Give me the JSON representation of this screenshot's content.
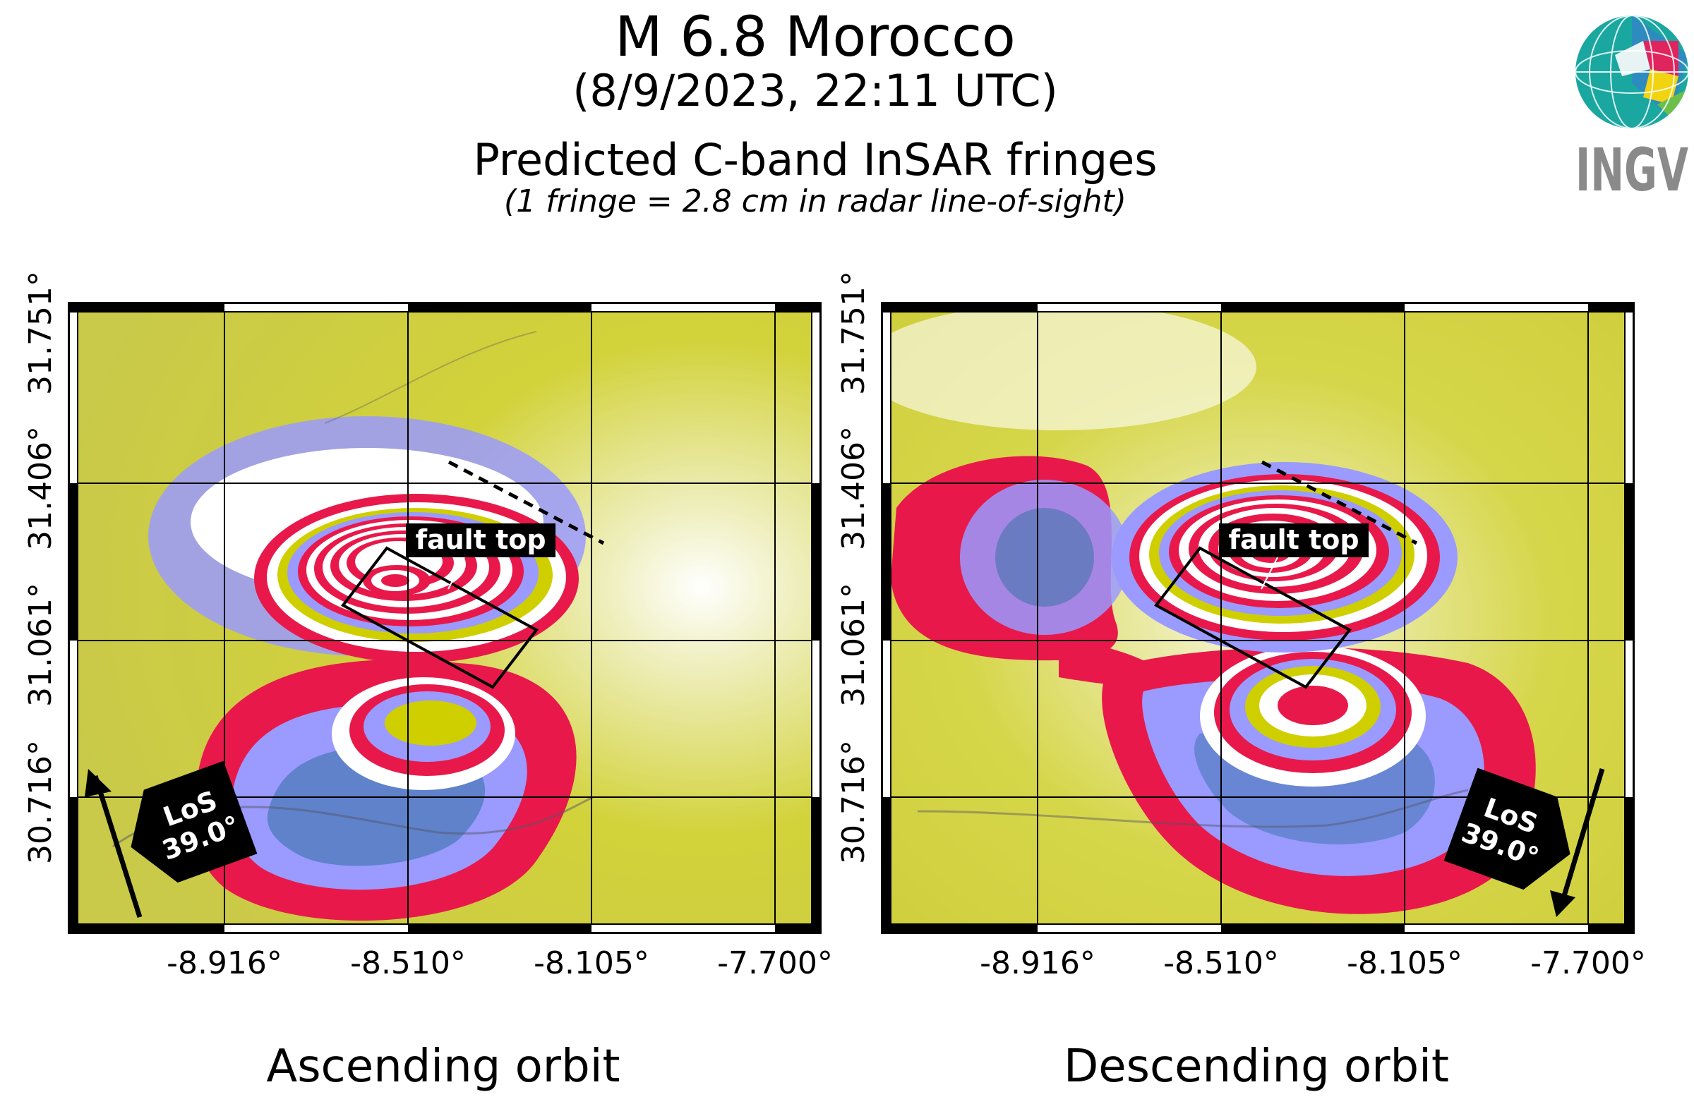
{
  "header": {
    "title": "M 6.8 Morocco",
    "datetime": "(8/9/2023, 22:11 UTC)",
    "subtitle": "Predicted C-band InSAR fringes",
    "note": "(1 fringe = 2.8 cm in radar line-of-sight)"
  },
  "logo": {
    "text": "INGV",
    "colors": [
      "#1aa7a0",
      "#e0245e",
      "#f2d30f",
      "#6cc04a",
      "#2e8bc0"
    ]
  },
  "axes": {
    "x_ticks": [
      "-8.916°",
      "-8.510°",
      "-8.105°",
      "-7.700°"
    ],
    "y_ticks": [
      "30.716°",
      "31.061°",
      "31.406°",
      "31.751°"
    ]
  },
  "colors": {
    "fringe_red": "#e8194a",
    "fringe_blue": "#9a9aff",
    "fringe_yellow": "#cfcf00",
    "fringe_white": "#ffffff",
    "deep_blue": "#2f6fa0"
  },
  "panels": [
    {
      "title": "Ascending orbit",
      "fault_label": "fault top",
      "los_label": "LoS",
      "los_angle": "39.0°"
    },
    {
      "title": "Descending orbit",
      "fault_label": "fault top",
      "los_label": "LoS",
      "los_angle": "39.0°"
    }
  ]
}
